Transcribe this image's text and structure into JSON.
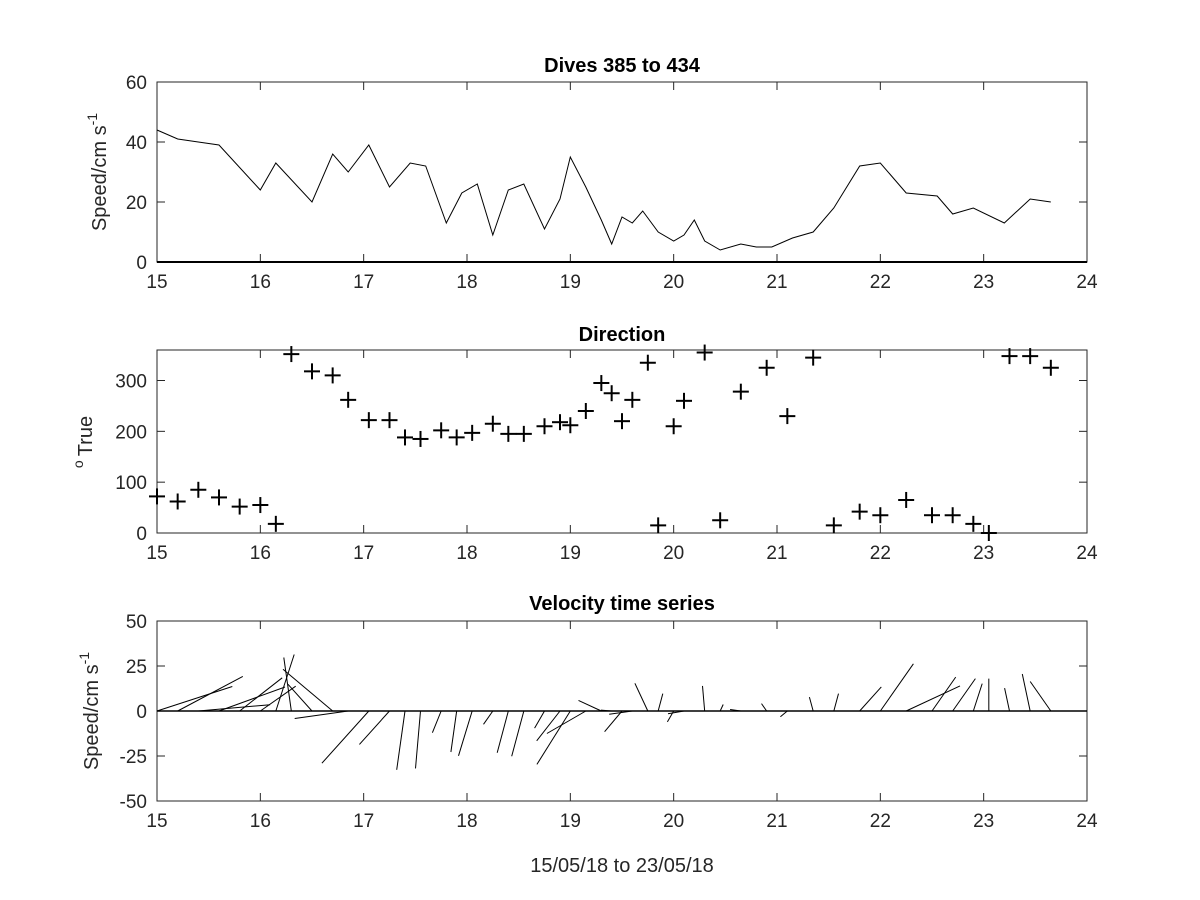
{
  "chart_data": [
    {
      "type": "line",
      "title": "Dives 385 to 434",
      "ylabel": "Speed/cm s",
      "ylabel_superscript": "-1",
      "xlim": [
        15,
        24
      ],
      "ylim": [
        0,
        60
      ],
      "xticks": [
        15,
        16,
        17,
        18,
        19,
        20,
        21,
        22,
        23,
        24
      ],
      "yticks": [
        0,
        20,
        40,
        60
      ],
      "x": [
        15.0,
        15.2,
        15.4,
        15.6,
        16.0,
        16.15,
        16.5,
        16.7,
        16.85,
        17.05,
        17.25,
        17.45,
        17.6,
        17.8,
        17.95,
        18.1,
        18.25,
        18.4,
        18.55,
        18.75,
        18.9,
        19.0,
        19.15,
        19.3,
        19.4,
        19.5,
        19.6,
        19.7,
        19.85,
        20.0,
        20.1,
        20.2,
        20.3,
        20.45,
        20.65,
        20.8,
        20.95,
        21.15,
        21.35,
        21.55,
        21.8,
        22.0,
        22.25,
        22.55,
        22.7,
        22.9,
        23.2,
        23.45,
        23.65
      ],
      "y": [
        44,
        41,
        40,
        39,
        24,
        33,
        20,
        36,
        30,
        39,
        25,
        33,
        32,
        13,
        23,
        26,
        9,
        24,
        26,
        11,
        21,
        35,
        25,
        14,
        6,
        15,
        13,
        17,
        10,
        7,
        9,
        14,
        7,
        4,
        6,
        5,
        5,
        8,
        10,
        18,
        32,
        33,
        23,
        22,
        16,
        18,
        13,
        21,
        20
      ]
    },
    {
      "type": "scatter",
      "title": "Direction",
      "ylabel": "True",
      "ylabel_superscript": "o",
      "xlim": [
        15,
        24
      ],
      "ylim": [
        0,
        360
      ],
      "xticks": [
        15,
        16,
        17,
        18,
        19,
        20,
        21,
        22,
        23,
        24
      ],
      "yticks": [
        0,
        100,
        200,
        300
      ],
      "marker": "+",
      "x": [
        15.0,
        15.2,
        15.4,
        15.6,
        15.8,
        16.0,
        16.15,
        16.3,
        16.5,
        16.7,
        16.85,
        17.05,
        17.25,
        17.4,
        17.55,
        17.75,
        17.9,
        18.05,
        18.25,
        18.4,
        18.55,
        18.75,
        18.9,
        19.0,
        19.15,
        19.3,
        19.4,
        19.5,
        19.6,
        19.75,
        19.85,
        20.0,
        20.1,
        20.3,
        20.45,
        20.65,
        20.9,
        21.1,
        21.35,
        21.55,
        21.8,
        22.0,
        22.25,
        22.5,
        22.7,
        22.9,
        23.05,
        23.25,
        23.45,
        23.65
      ],
      "y": [
        72,
        62,
        85,
        70,
        52,
        55,
        18,
        352,
        318,
        310,
        262,
        222,
        222,
        188,
        185,
        202,
        188,
        197,
        215,
        195,
        195,
        210,
        218,
        212,
        240,
        295,
        275,
        220,
        262,
        335,
        15,
        210,
        260,
        355,
        25,
        278,
        325,
        230,
        345,
        15,
        42,
        35,
        65,
        35,
        35,
        18,
        0,
        348,
        348,
        325
      ]
    },
    {
      "type": "quiver",
      "title": "Velocity time series",
      "ylabel": "Speed/cm s",
      "ylabel_superscript": "-1",
      "xlabel": "15/05/18 to 23/05/18",
      "xlim": [
        15,
        24
      ],
      "ylim": [
        -50,
        50
      ],
      "xticks": [
        15,
        16,
        17,
        18,
        19,
        20,
        21,
        22,
        23,
        24
      ],
      "yticks": [
        -50,
        -25,
        0,
        25,
        50
      ],
      "baseline": 0,
      "x": [
        15.0,
        15.2,
        15.4,
        15.6,
        15.8,
        16.0,
        16.15,
        16.3,
        16.5,
        16.7,
        16.85,
        17.05,
        17.25,
        17.4,
        17.55,
        17.75,
        17.9,
        18.05,
        18.25,
        18.4,
        18.55,
        18.75,
        18.9,
        19.0,
        19.15,
        19.3,
        19.4,
        19.5,
        19.6,
        19.75,
        19.85,
        20.0,
        20.1,
        20.3,
        20.45,
        20.65,
        20.9,
        21.1,
        21.35,
        21.55,
        21.8,
        22.0,
        22.25,
        22.5,
        22.7,
        22.9,
        23.05,
        23.25,
        23.45,
        23.65
      ],
      "speed": [
        44,
        41,
        40,
        39,
        30,
        24,
        33,
        30,
        20,
        36,
        30,
        39,
        25,
        33,
        32,
        13,
        23,
        26,
        9,
        24,
        26,
        11,
        21,
        35,
        25,
        14,
        6,
        15,
        13,
        17,
        10,
        7,
        9,
        14,
        4,
        6,
        5,
        5,
        8,
        10,
        18,
        32,
        33,
        23,
        22,
        16,
        18,
        13,
        21,
        20
      ],
      "direction": [
        72,
        62,
        85,
        70,
        52,
        55,
        18,
        352,
        318,
        310,
        262,
        222,
        222,
        188,
        185,
        202,
        188,
        197,
        215,
        195,
        195,
        210,
        218,
        212,
        240,
        295,
        275,
        220,
        262,
        335,
        15,
        210,
        260,
        355,
        25,
        278,
        325,
        230,
        345,
        15,
        42,
        35,
        65,
        35,
        35,
        18,
        0,
        348,
        348,
        325
      ]
    }
  ]
}
